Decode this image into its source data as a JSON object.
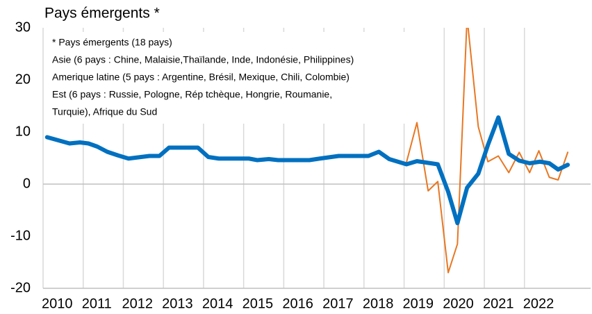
{
  "chart_data": {
    "type": "line",
    "title": "Pays émergents *",
    "annotation": [
      "* Pays émergents (18 pays)",
      "Asie (6 pays : Chine, Malaisie,Thaïlande, Inde, Indonésie, Philippines)",
      "Amerique latine (5 pays : Argentine, Brésil, Mexique, Chili,  Colombie)",
      "Est (6 pays : Russie, Pologne, Rép tchèque, Hongrie, Roumanie,",
      "Turquie), Afrique du Sud"
    ],
    "xlim": [
      2010,
      2023.65
    ],
    "xticks": [
      2010,
      2011,
      2012,
      2013,
      2014,
      2015,
      2016,
      2017,
      2018,
      2019,
      2020,
      2021,
      2022
    ],
    "ylim": [
      -20,
      30
    ],
    "yticks": [
      -20,
      -10,
      0,
      10,
      20,
      30
    ],
    "grid": true,
    "series": [
      {
        "color": "#0070c0",
        "width": 6,
        "x": [
          2010.1,
          2010.66,
          2010.92,
          2011.13,
          2011.35,
          2011.6,
          2011.87,
          2012.13,
          2012.65,
          2012.9,
          2013.14,
          2013.86,
          2014.12,
          2014.38,
          2015.13,
          2015.34,
          2015.63,
          2015.86,
          2016.64,
          2016.9,
          2017.37,
          2018.11,
          2018.37,
          2018.63,
          2019.06,
          2019.32,
          2019.84,
          2020.1,
          2020.33,
          2020.57,
          2020.85,
          2021.09,
          2021.35,
          2021.61,
          2021.87,
          2022.13,
          2022.39,
          2022.62,
          2022.84,
          2023.08
        ],
        "values": [
          9,
          7.8,
          8,
          7.8,
          7.2,
          6.2,
          5.5,
          4.9,
          5.4,
          5.4,
          7,
          7,
          5.2,
          4.9,
          4.9,
          4.6,
          4.8,
          4.6,
          4.6,
          4.9,
          5.4,
          5.4,
          6.2,
          4.8,
          3.8,
          4.4,
          3.8,
          -1.5,
          -7.5,
          -0.7,
          2,
          7.5,
          12.8,
          5.8,
          4.5,
          4,
          4.3,
          4,
          2.8,
          3.7
        ]
      },
      {
        "color": "#e87722",
        "width": 2,
        "x": [
          2019.06,
          2019.32,
          2019.6,
          2019.84,
          2020.1,
          2020.33,
          2020.57,
          2020.85,
          2021.09,
          2021.35,
          2021.61,
          2021.87,
          2022.13,
          2022.36,
          2022.62,
          2022.84,
          2023.08
        ],
        "values": [
          4.2,
          11.8,
          -1.3,
          0.5,
          -17,
          -11.5,
          32,
          11,
          4.3,
          5.4,
          2.2,
          6.1,
          2.2,
          6.4,
          1.3,
          0.8,
          6.1
        ]
      }
    ]
  }
}
